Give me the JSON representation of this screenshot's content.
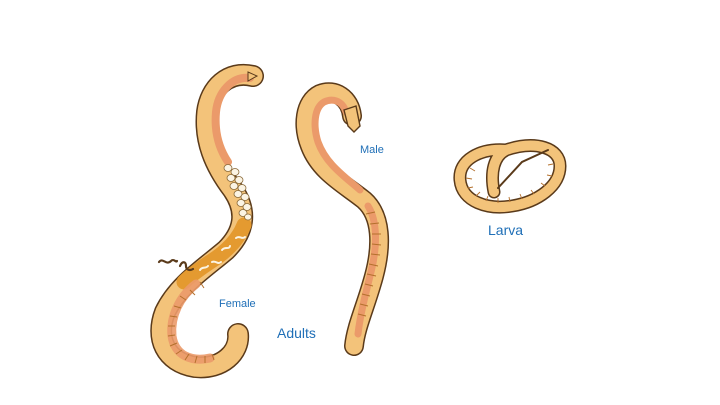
{
  "labels": {
    "male": "Male",
    "female": "Female",
    "adults": "Adults",
    "larva": "Larva"
  },
  "figures": [
    {
      "name": "female-worm",
      "depicts": "adult female roundworm with eggs"
    },
    {
      "name": "male-worm",
      "depicts": "adult male roundworm"
    },
    {
      "name": "larva-worm",
      "depicts": "coiled larva"
    }
  ],
  "colors": {
    "body_fill": "#f3c37a",
    "gut_fill": "#eb9a6a",
    "outline": "#5a3a1a",
    "label_text": "#1f6fb7",
    "egg_fill": "#fbf4e4",
    "yolk_fill": "#e8a33a"
  }
}
